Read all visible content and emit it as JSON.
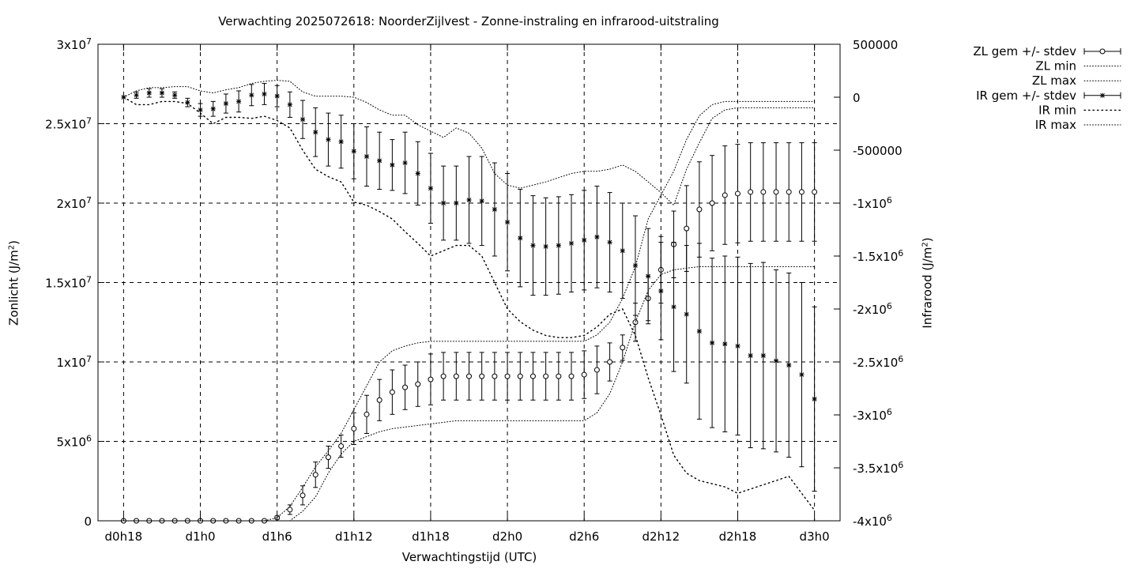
{
  "chart_data": {
    "type": "line",
    "title": "Verwachting 2025072618: NoorderZijlvest - Zonne-instraling en infrarood-uitstraling",
    "xlabel": "Verwachtingstijd (UTC)",
    "ylabel": "Zonlicht (J/m²)",
    "ylabel_unit_sup": "2",
    "y2label": "Infrarood (J/m²)",
    "ylim": [
      0,
      30000000
    ],
    "y2lim": [
      -4000000,
      500000
    ],
    "xlim_hours": [
      16,
      74
    ],
    "x_ticks": [
      {
        "hour": 18,
        "label": "d0h18"
      },
      {
        "hour": 24,
        "label": "d1h0"
      },
      {
        "hour": 30,
        "label": "d1h6"
      },
      {
        "hour": 36,
        "label": "d1h12"
      },
      {
        "hour": 42,
        "label": "d1h18"
      },
      {
        "hour": 48,
        "label": "d2h0"
      },
      {
        "hour": 54,
        "label": "d2h6"
      },
      {
        "hour": 60,
        "label": "d2h12"
      },
      {
        "hour": 66,
        "label": "d2h18"
      },
      {
        "hour": 72,
        "label": "d3h0"
      }
    ],
    "y_ticks": [
      {
        "value": 0,
        "base": "0",
        "exp": ""
      },
      {
        "value": 5000000,
        "base": "5x10",
        "exp": "6"
      },
      {
        "value": 10000000,
        "base": "1x10",
        "exp": "7"
      },
      {
        "value": 15000000,
        "base": "1.5x10",
        "exp": "7"
      },
      {
        "value": 20000000,
        "base": "2x10",
        "exp": "7"
      },
      {
        "value": 25000000,
        "base": "2.5x10",
        "exp": "7"
      },
      {
        "value": 30000000,
        "base": "3x10",
        "exp": "7"
      }
    ],
    "y2_ticks": [
      {
        "value": 500000,
        "base": "500000",
        "exp": ""
      },
      {
        "value": 0,
        "base": "0",
        "exp": ""
      },
      {
        "value": -500000,
        "base": "-500000",
        "exp": ""
      },
      {
        "value": -1000000,
        "base": "-1x10",
        "exp": "6"
      },
      {
        "value": -1500000,
        "base": "-1.5x10",
        "exp": "6"
      },
      {
        "value": -2000000,
        "base": "-2x10",
        "exp": "6"
      },
      {
        "value": -2500000,
        "base": "-2.5x10",
        "exp": "6"
      },
      {
        "value": -3000000,
        "base": "-3x10",
        "exp": "6"
      },
      {
        "value": -3500000,
        "base": "-3.5x10",
        "exp": "6"
      },
      {
        "value": -4000000,
        "base": "-4x10",
        "exp": "6"
      }
    ],
    "grid": true,
    "legend_position": "outside-top-right",
    "x_hours": [
      18,
      19,
      20,
      21,
      22,
      23,
      24,
      25,
      26,
      27,
      28,
      29,
      30,
      31,
      32,
      33,
      34,
      35,
      36,
      37,
      38,
      39,
      40,
      41,
      42,
      43,
      44,
      45,
      46,
      47,
      48,
      49,
      50,
      51,
      52,
      53,
      54,
      55,
      56,
      57,
      58,
      59,
      60,
      61,
      62,
      63,
      64,
      65,
      66,
      67,
      68,
      69,
      70,
      71,
      72
    ],
    "series": [
      {
        "name": "ZL gem +/- stdev",
        "axis": "y1",
        "marker": "circle",
        "mean": [
          0,
          0,
          0,
          0,
          0,
          0,
          0,
          0,
          0,
          0,
          0,
          0,
          200000,
          700000,
          1600000,
          2900000,
          4000000,
          4700000,
          5800000,
          6700000,
          7600000,
          8100000,
          8400000,
          8600000,
          8900000,
          9100000,
          9100000,
          9100000,
          9100000,
          9100000,
          9100000,
          9100000,
          9100000,
          9100000,
          9100000,
          9100000,
          9200000,
          9500000,
          10000000,
          10900000,
          12500000,
          14000000,
          15800000,
          17400000,
          18400000,
          19600000,
          20000000,
          20500000,
          20600000,
          20700000,
          20700000,
          20700000,
          20700000,
          20700000,
          20700000
        ],
        "stdev": [
          0,
          0,
          0,
          0,
          0,
          0,
          0,
          0,
          0,
          0,
          0,
          0,
          100000,
          300000,
          600000,
          800000,
          700000,
          700000,
          1000000,
          1200000,
          1300000,
          1400000,
          1400000,
          1400000,
          1600000,
          1500000,
          1500000,
          1500000,
          1500000,
          1500000,
          1500000,
          1500000,
          1500000,
          1500000,
          1500000,
          1500000,
          1500000,
          1500000,
          1200000,
          800000,
          1200000,
          1400000,
          2100000,
          2100000,
          2700000,
          3000000,
          3000000,
          3100000,
          3100000,
          3100000,
          3100000,
          3100000,
          3100000,
          3100000,
          3100000
        ]
      },
      {
        "name": "ZL min",
        "axis": "y1",
        "style": "dotted",
        "values": [
          0,
          0,
          0,
          0,
          0,
          0,
          0,
          0,
          0,
          0,
          0,
          0,
          0,
          0,
          600000,
          1500000,
          3000000,
          4200000,
          5000000,
          5300000,
          5600000,
          5800000,
          5900000,
          6000000,
          6100000,
          6200000,
          6300000,
          6300000,
          6300000,
          6300000,
          6300000,
          6300000,
          6300000,
          6300000,
          6300000,
          6300000,
          6300000,
          6800000,
          8000000,
          10000000,
          12500000,
          14500000,
          15500000,
          15800000,
          15900000,
          16000000,
          16000000,
          16000000,
          16000000,
          16000000,
          16000000,
          16000000,
          16000000,
          16000000,
          16000000
        ]
      },
      {
        "name": "ZL max",
        "axis": "y1",
        "style": "dotted",
        "values": [
          0,
          0,
          0,
          0,
          0,
          0,
          0,
          0,
          0,
          0,
          0,
          0,
          200000,
          900000,
          2100000,
          3400000,
          4400000,
          5500000,
          7000000,
          8500000,
          10000000,
          10700000,
          11000000,
          11200000,
          11300000,
          11300000,
          11300000,
          11300000,
          11300000,
          11300000,
          11300000,
          11300000,
          11300000,
          11300000,
          11300000,
          11300000,
          11300000,
          11700000,
          12500000,
          14000000,
          16000000,
          19000000,
          20500000,
          22000000,
          24000000,
          25500000,
          26200000,
          26400000,
          26400000,
          26400000,
          26400000,
          26400000,
          26400000,
          26400000,
          26400000
        ]
      },
      {
        "name": "IR gem +/- stdev",
        "axis": "y2",
        "marker": "star",
        "mean": [
          0,
          20000,
          40000,
          40000,
          20000,
          -50000,
          -120000,
          -110000,
          -60000,
          -40000,
          20000,
          30000,
          10000,
          -70000,
          -210000,
          -330000,
          -400000,
          -420000,
          -510000,
          -560000,
          -600000,
          -640000,
          -620000,
          -720000,
          -860000,
          -1000000,
          -1000000,
          -970000,
          -980000,
          -1060000,
          -1180000,
          -1330000,
          -1400000,
          -1410000,
          -1400000,
          -1380000,
          -1350000,
          -1320000,
          -1370000,
          -1450000,
          -1590000,
          -1690000,
          -1830000,
          -1980000,
          -2050000,
          -2210000,
          -2320000,
          -2330000,
          -2350000,
          -2440000,
          -2440000,
          -2490000,
          -2530000,
          -2620000,
          -2850000
        ],
        "stdev": [
          0,
          30000,
          40000,
          40000,
          30000,
          40000,
          60000,
          70000,
          90000,
          100000,
          100000,
          100000,
          100000,
          120000,
          180000,
          230000,
          250000,
          250000,
          260000,
          280000,
          270000,
          240000,
          290000,
          300000,
          330000,
          350000,
          350000,
          410000,
          420000,
          440000,
          460000,
          460000,
          470000,
          460000,
          460000,
          460000,
          470000,
          480000,
          470000,
          450000,
          470000,
          450000,
          460000,
          610000,
          650000,
          830000,
          800000,
          830000,
          840000,
          870000,
          880000,
          860000,
          870000,
          870000,
          870000
        ]
      },
      {
        "name": "IR min",
        "axis": "y2",
        "style": "dotted",
        "values": [
          0,
          -70000,
          -70000,
          -40000,
          -40000,
          -60000,
          -150000,
          -250000,
          -190000,
          -190000,
          -200000,
          -180000,
          -220000,
          -290000,
          -500000,
          -680000,
          -750000,
          -800000,
          -990000,
          -1020000,
          -1080000,
          -1150000,
          -1270000,
          -1380000,
          -1500000,
          -1450000,
          -1400000,
          -1400000,
          -1500000,
          -1750000,
          -2000000,
          -2120000,
          -2200000,
          -2250000,
          -2270000,
          -2270000,
          -2250000,
          -2170000,
          -2050000,
          -2000000,
          -2250000,
          -2650000,
          -3000000,
          -3380000,
          -3550000,
          -3620000,
          -3650000,
          -3680000,
          -3740000,
          -3700000,
          -3660000,
          -3620000,
          -3580000,
          -3740000,
          -3900000
        ]
      },
      {
        "name": "IR max",
        "axis": "y2",
        "style": "dotted",
        "values": [
          0,
          60000,
          90000,
          90000,
          100000,
          100000,
          60000,
          40000,
          70000,
          90000,
          130000,
          150000,
          160000,
          150000,
          50000,
          10000,
          10000,
          10000,
          0,
          -50000,
          -120000,
          -170000,
          -170000,
          -260000,
          -320000,
          -380000,
          -290000,
          -340000,
          -480000,
          -720000,
          -830000,
          -860000,
          -830000,
          -800000,
          -760000,
          -720000,
          -700000,
          -700000,
          -680000,
          -640000,
          -700000,
          -800000,
          -900000,
          -1020000,
          -680000,
          -430000,
          -200000,
          -120000,
          -100000,
          -100000,
          -100000,
          -100000,
          -100000,
          -100000,
          -100000
        ]
      }
    ]
  }
}
